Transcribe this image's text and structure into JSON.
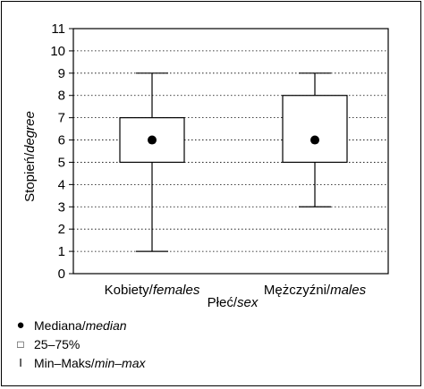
{
  "chart_data": {
    "type": "boxplot",
    "categories": [
      "Kobiety/females",
      "Mężczyźni/males"
    ],
    "category_labels": [
      {
        "main": "Kobiety/",
        "italic": "females"
      },
      {
        "main": "Mężczyźni/",
        "italic": "males"
      }
    ],
    "boxes": [
      {
        "category": "Kobiety/females",
        "min": 1,
        "q1": 5,
        "median": 6,
        "q3": 7,
        "max": 9
      },
      {
        "category": "Mężczyźni/males",
        "min": 3,
        "q1": 5,
        "median": 6,
        "q3": 8,
        "max": 9
      }
    ],
    "xlabel": {
      "main": "Płeć/",
      "italic": "sex"
    },
    "ylabel": {
      "main": "Stopień/",
      "italic": "degree"
    },
    "ylim": [
      0,
      11
    ],
    "yticks": [
      "0",
      "1",
      "2",
      "3",
      "4",
      "5",
      "6",
      "7",
      "8",
      "9",
      "10",
      "11"
    ],
    "grid": "horizontal dotted",
    "legend_position": "bottom-left",
    "legend": [
      {
        "symbol": "●",
        "main": "Mediana/",
        "italic": "median"
      },
      {
        "symbol": "□",
        "main": "25–75%",
        "italic": ""
      },
      {
        "symbol": "I",
        "main": "Min–Maks/",
        "italic": "min–max"
      }
    ]
  }
}
